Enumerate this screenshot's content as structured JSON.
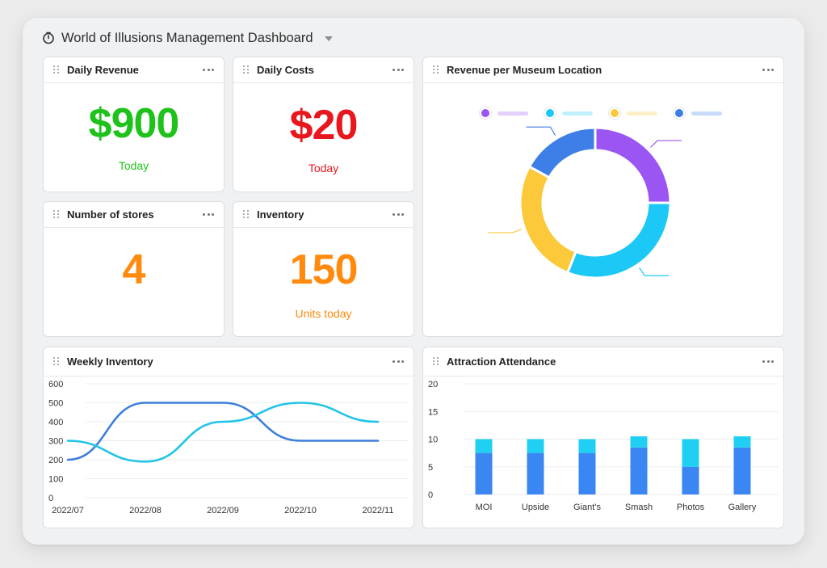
{
  "dashboard": {
    "title": "World of Illusions Management Dashboard",
    "icon": "timer-icon"
  },
  "cards": {
    "daily_revenue": {
      "title": "Daily Revenue",
      "value": "$900",
      "sub": "Today",
      "color": "#1fc21a"
    },
    "daily_costs": {
      "title": "Daily Costs",
      "value": "$20",
      "sub": "Today",
      "color": "#e8161d"
    },
    "stores": {
      "title": "Number of stores",
      "value": "4",
      "color": "#ff8a0d"
    },
    "inventory": {
      "title": "Inventory",
      "value": "150",
      "sub": "Units today",
      "color": "#ff8a0d"
    },
    "revenue_location": {
      "title": "Revenue per Museum Location"
    },
    "weekly_inventory": {
      "title": "Weekly Inventory"
    },
    "attendance": {
      "title": "Attraction Attendance"
    }
  },
  "colors": {
    "purple": "#9b55f2",
    "cyan": "#1cc8f5",
    "yellow": "#fcc93a",
    "blue": "#3d7fe6",
    "lineDark": "#3f7fdc",
    "lineLight": "#22c4e6",
    "barBlue": "#3a86f2",
    "barCyan": "#1fd0f2"
  },
  "chart_data": [
    {
      "type": "pie",
      "title": "Revenue per Museum Location",
      "slices": [
        {
          "value": 25,
          "color": "#9b55f2"
        },
        {
          "value": 31,
          "color": "#1cc8f5"
        },
        {
          "value": 27,
          "color": "#fcc93a"
        },
        {
          "value": 17,
          "color": "#3d7fe6"
        }
      ]
    },
    {
      "type": "line",
      "title": "Weekly Inventory",
      "x": [
        "2022/07",
        "2022/08",
        "2022/09",
        "2022/10",
        "2022/11"
      ],
      "ylim": [
        0,
        600
      ],
      "yticks": [
        "0",
        "100",
        "200",
        "300",
        "400",
        "500",
        "600"
      ],
      "series": [
        {
          "values": [
            200,
            500,
            500,
            300,
            300
          ],
          "color": "#3f7fdc"
        },
        {
          "values": [
            300,
            190,
            400,
            500,
            400
          ],
          "color": "#22c4e6"
        }
      ],
      "grid": true
    },
    {
      "type": "bar",
      "title": "Attraction Attendance",
      "categories": [
        "MOI",
        "Upside",
        "Giant's",
        "Smash",
        "Photos",
        "Gallery"
      ],
      "ylim": [
        0,
        20
      ],
      "yticks": [
        "0",
        "5",
        "10",
        "15",
        "20"
      ],
      "series": [
        {
          "values": [
            7.5,
            7.5,
            7.5,
            8.5,
            5,
            8.5
          ],
          "color": "#3a86f2"
        },
        {
          "values": [
            2.5,
            2.5,
            2.5,
            2,
            5,
            2
          ],
          "color": "#1fd0f2"
        }
      ],
      "stacked": true,
      "grid": true
    }
  ]
}
